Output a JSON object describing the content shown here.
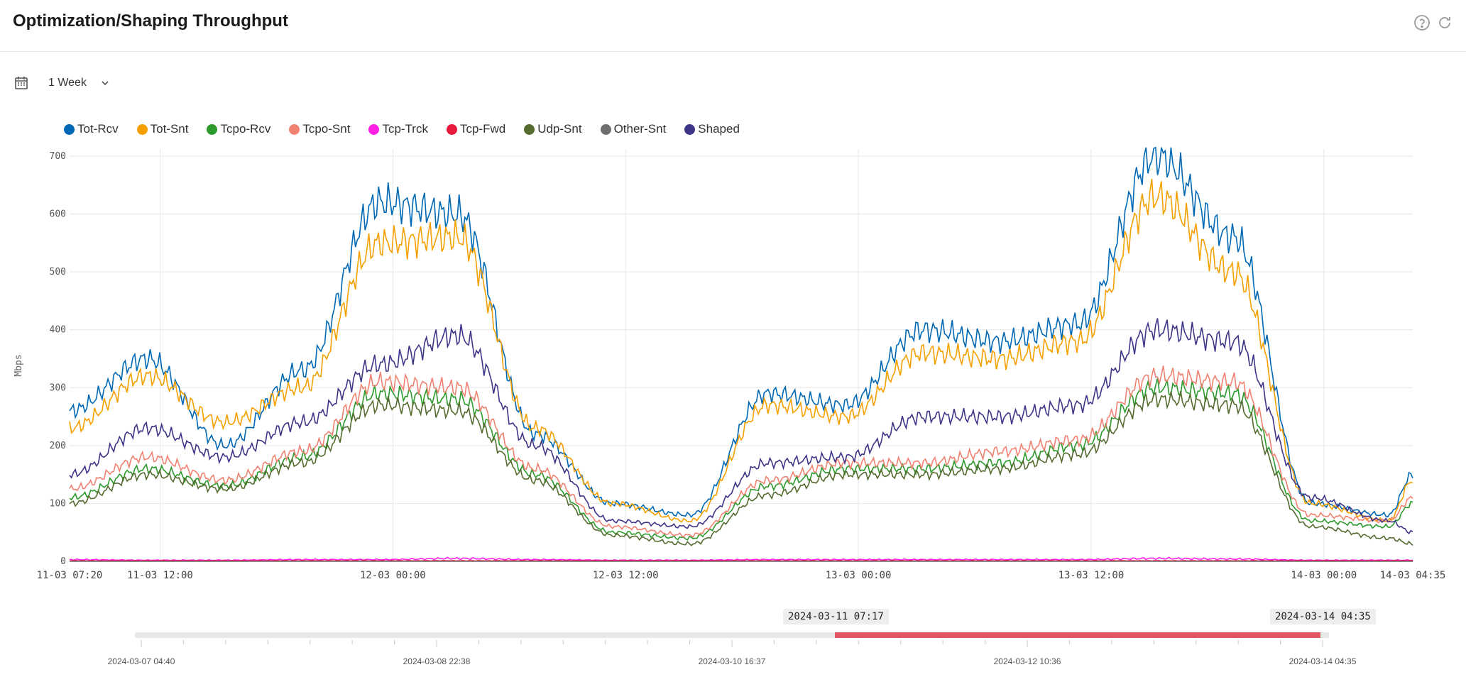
{
  "header": {
    "title": "Optimization/Shaping Throughput"
  },
  "icons": {
    "help": "help-circle-icon",
    "refresh": "refresh-icon",
    "calendar": "calendar-icon",
    "dropdown": "chevron-down-icon"
  },
  "range": {
    "selected": "1 Week"
  },
  "legend": [
    {
      "name": "Tot-Rcv",
      "color": "#0068b4"
    },
    {
      "name": "Tot-Snt",
      "color": "#f5a000"
    },
    {
      "name": "Tcpo-Rcv",
      "color": "#2c9a2c"
    },
    {
      "name": "Tcpo-Snt",
      "color": "#f08272"
    },
    {
      "name": "Tcp-Trck",
      "color": "#ff1fe5"
    },
    {
      "name": "Tcp-Fwd",
      "color": "#e8193c"
    },
    {
      "name": "Udp-Snt",
      "color": "#556b2f"
    },
    {
      "name": "Other-Snt",
      "color": "#6e6e6e"
    },
    {
      "name": "Shaped",
      "color": "#3d3588"
    }
  ],
  "chart_data": {
    "type": "line",
    "ylabel": "Mbps",
    "ylim": [
      0,
      700
    ],
    "yticks": [
      "0",
      "100",
      "200",
      "300",
      "400",
      "500",
      "600",
      "700"
    ],
    "xlim": [
      "2024-03-11 07:20",
      "2024-03-14 04:35"
    ],
    "xticks": [
      "11-03 07:20",
      "11-03 12:00",
      "12-03 00:00",
      "12-03 12:00",
      "13-03 00:00",
      "13-03 12:00",
      "14-03 00:00",
      "14-03 04:35"
    ],
    "x_hours": [
      0,
      4,
      8,
      12,
      16,
      20,
      24,
      28,
      32,
      36,
      40,
      44,
      48,
      52,
      56,
      60,
      64,
      68,
      69.25
    ],
    "series": [
      {
        "name": "Tot-Rcv",
        "color": "#0068b4",
        "values": [
          260,
          350,
          200,
          330,
          620,
          600,
          220,
          100,
          80,
          290,
          270,
          400,
          380,
          410,
          700,
          560,
          100,
          80,
          150
        ]
      },
      {
        "name": "Tot-Snt",
        "color": "#f5a000",
        "values": [
          230,
          320,
          240,
          300,
          550,
          560,
          230,
          100,
          70,
          270,
          250,
          360,
          350,
          380,
          630,
          500,
          100,
          70,
          140
        ]
      },
      {
        "name": "Tcpo-Rcv",
        "color": "#2c9a2c",
        "values": [
          110,
          160,
          130,
          180,
          290,
          280,
          150,
          50,
          40,
          130,
          160,
          160,
          170,
          200,
          300,
          290,
          70,
          60,
          100
        ]
      },
      {
        "name": "Tcpo-Snt",
        "color": "#f08272",
        "values": [
          125,
          180,
          140,
          190,
          310,
          300,
          160,
          60,
          45,
          140,
          170,
          170,
          190,
          210,
          320,
          310,
          80,
          70,
          110
        ]
      },
      {
        "name": "Tcp-Trck",
        "color": "#ff1fe5",
        "values": [
          3,
          2,
          2,
          3,
          3,
          5,
          3,
          2,
          2,
          3,
          3,
          3,
          3,
          3,
          5,
          4,
          2,
          2,
          2
        ]
      },
      {
        "name": "Tcp-Fwd",
        "color": "#e8193c",
        "values": [
          1,
          1,
          1,
          1,
          1,
          1,
          1,
          1,
          1,
          1,
          1,
          1,
          1,
          1,
          1,
          1,
          1,
          1,
          1
        ]
      },
      {
        "name": "Udp-Snt",
        "color": "#556b2f",
        "values": [
          100,
          150,
          125,
          170,
          270,
          260,
          140,
          45,
          30,
          115,
          150,
          150,
          160,
          185,
          280,
          270,
          60,
          40,
          30
        ]
      },
      {
        "name": "Other-Snt",
        "color": "#6e6e6e",
        "values": [
          0,
          0,
          0,
          0,
          0,
          0,
          0,
          0,
          0,
          0,
          0,
          0,
          0,
          0,
          0,
          0,
          0,
          0,
          0
        ]
      },
      {
        "name": "Shaped",
        "color": "#3d3588",
        "values": [
          150,
          230,
          180,
          240,
          340,
          390,
          200,
          70,
          60,
          170,
          180,
          250,
          250,
          270,
          400,
          380,
          110,
          70,
          50
        ]
      }
    ]
  },
  "slider": {
    "start_label": "2024-03-11 07:17",
    "end_label": "2024-03-14 04:35",
    "overall_dates": [
      "2024-03-07 04:40",
      "2024-03-08 22:38",
      "2024-03-10 16:37",
      "2024-03-12 10:36",
      "2024-03-14 04:35"
    ]
  }
}
